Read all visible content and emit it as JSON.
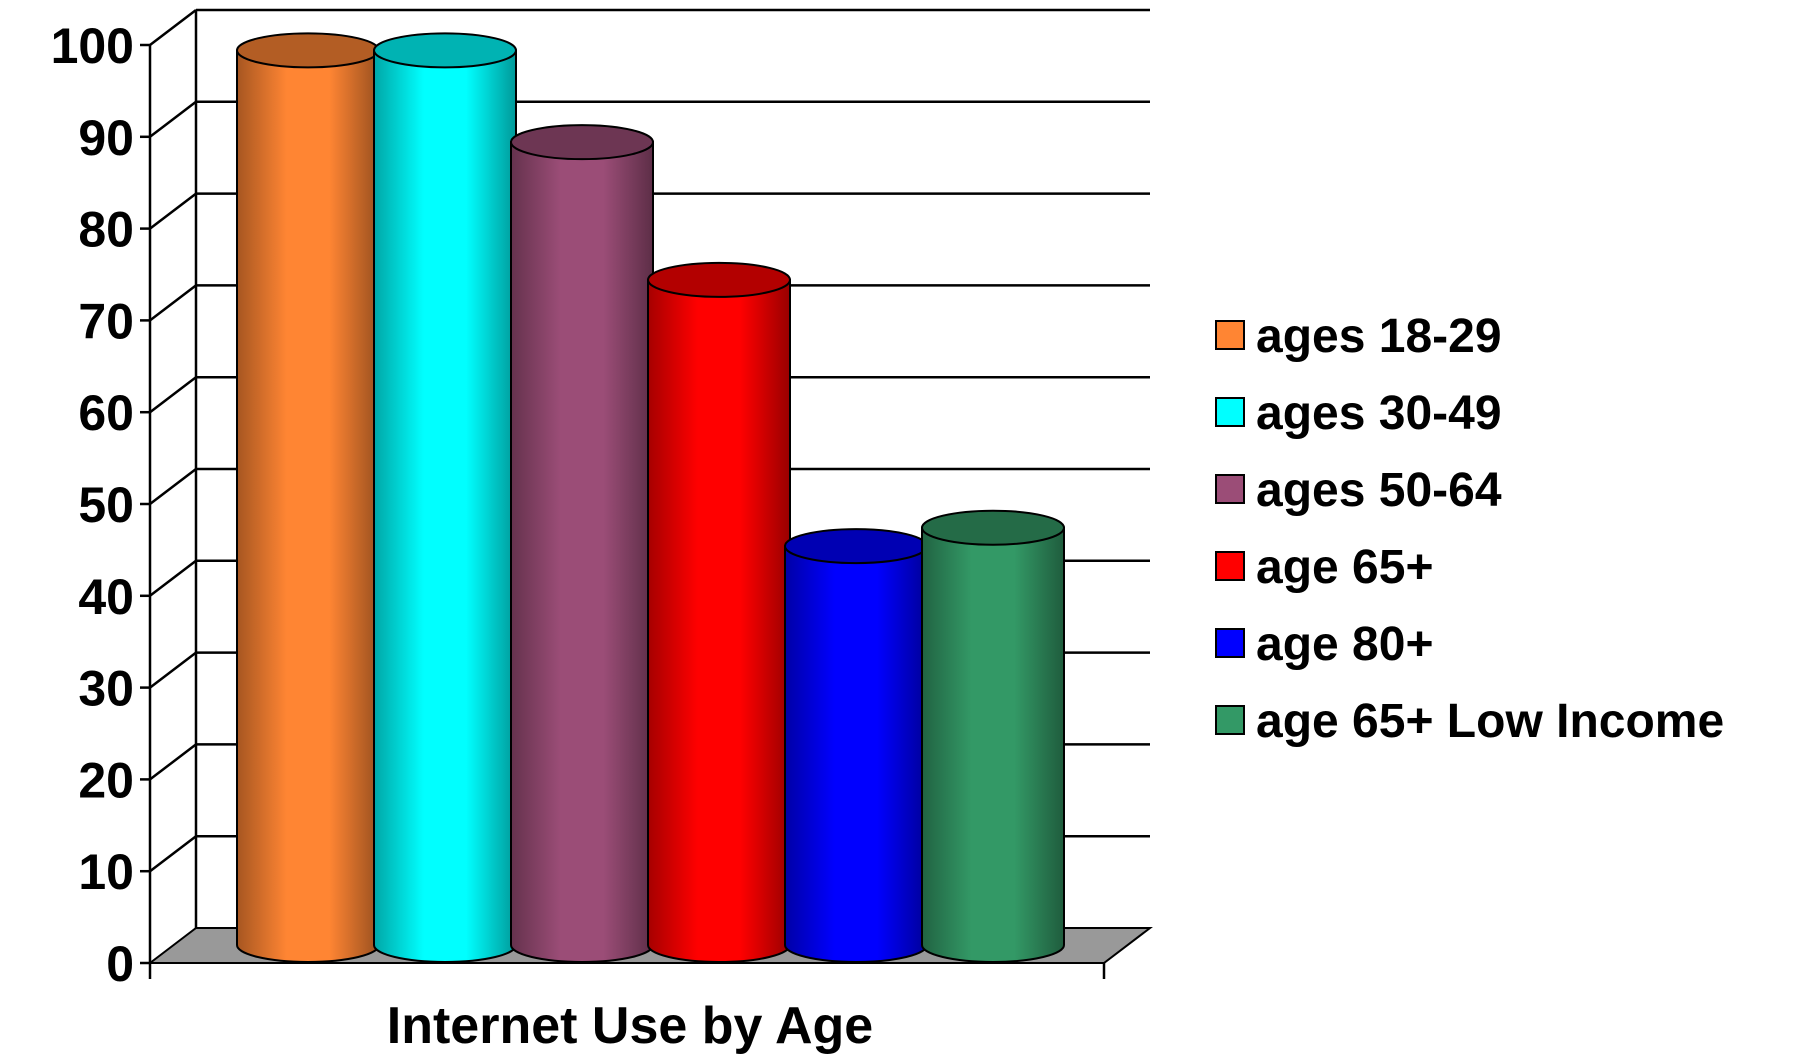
{
  "chart_data": {
    "type": "bar",
    "style": "3d-cylinder",
    "xlabel": "Internet Use by Age",
    "ylabel": "",
    "ylim": [
      0,
      100
    ],
    "yticks": [
      0,
      10,
      20,
      30,
      40,
      50,
      60,
      70,
      80,
      90,
      100
    ],
    "grid": true,
    "legend_position": "right",
    "series": [
      {
        "name": "ages 18-29",
        "value": 98,
        "color": "#FF8533"
      },
      {
        "name": "ages 30-49",
        "value": 98,
        "color": "#00FFFF"
      },
      {
        "name": "ages 50-64",
        "value": 88,
        "color": "#9B4D77"
      },
      {
        "name": "age 65+",
        "value": 73,
        "color": "#FF0000"
      },
      {
        "name": "age 80+",
        "value": 44,
        "color": "#0000FF"
      },
      {
        "name": "age 65+ Low Income",
        "value": 46,
        "color": "#339966"
      }
    ]
  }
}
